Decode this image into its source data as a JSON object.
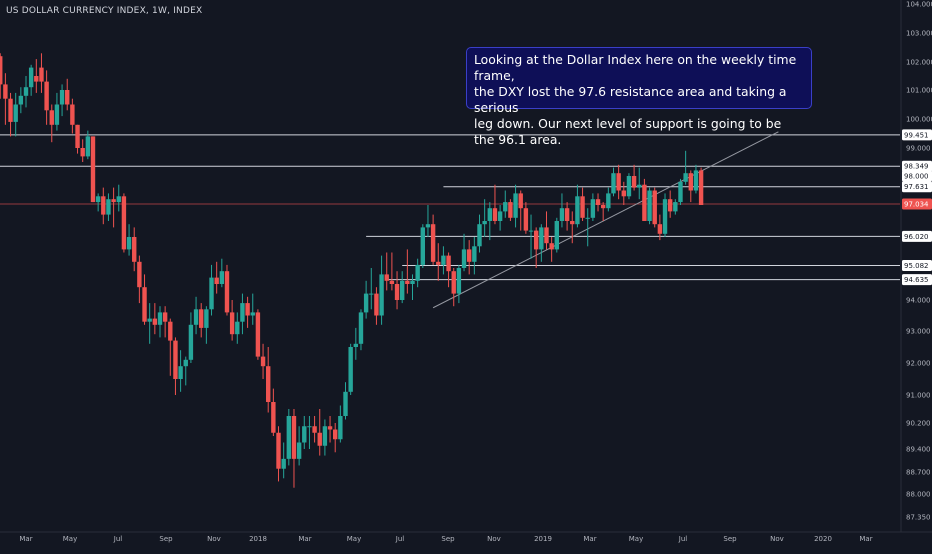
{
  "title": "US DOLLAR CURRENCY INDEX, 1W, INDEX",
  "annotation": "Looking at the Dollar Index here on the weekly time frame,\nthe DXY lost the 97.6 resistance area and taking a serious\nleg down. Our next level of support is going to be the 96.1 area.",
  "colors": {
    "background": "#131722",
    "up": "#26a69a",
    "down": "#ef5350",
    "level_line": "#d1d4dc",
    "price_line": "#ef5350",
    "axis_text": "#b2b5be",
    "note_bg": "#0e0f57"
  },
  "chart_data": {
    "type": "candlestick",
    "timeframe": "1W",
    "symbol": "INDEX",
    "y_axis": {
      "position": "right",
      "range": [
        87.0,
        104.0
      ],
      "ticks": [
        "104.000",
        "103.000",
        "102.000",
        "101.000",
        "100.000",
        "99.000",
        "98.000",
        "97.000",
        "96.000",
        "95.000",
        "94.000",
        "93.000",
        "92.000",
        "91.000",
        "90.200",
        "89.400",
        "88.700",
        "88.000",
        "87.350"
      ],
      "tick_values": [
        104.0,
        103.0,
        102.0,
        101.0,
        100.0,
        99.0,
        98.0,
        97.0,
        96.0,
        95.0,
        94.0,
        93.0,
        92.0,
        91.0,
        90.2,
        89.4,
        88.7,
        88.0,
        87.35
      ]
    },
    "x_axis": {
      "ticks": [
        "Mar",
        "May",
        "Jul",
        "Sep",
        "Nov",
        "2018",
        "Mar",
        "May",
        "Jul",
        "Sep",
        "Nov",
        "2019",
        "Mar",
        "May",
        "Jul",
        "Sep",
        "Nov",
        "2020",
        "Mar"
      ],
      "start": "2017-02-13",
      "end": "2020-03-30"
    },
    "levels": [
      {
        "label": "99.451",
        "value": 99.451,
        "from": "2016-12-26",
        "to": "2020-03-30"
      },
      {
        "label": "98.349",
        "value": 98.349,
        "from": "2016-12-26",
        "to": "2020-03-30"
      },
      {
        "label": "97.631",
        "value": 97.631,
        "from": "2018-09-03",
        "to": "2020-03-30"
      },
      {
        "label": "96.020",
        "value": 96.02,
        "from": "2018-05-21",
        "to": "2020-03-30"
      },
      {
        "label": "95.082",
        "value": 95.082,
        "from": "2018-07-09",
        "to": "2020-03-30"
      },
      {
        "label": "94.635",
        "value": 94.635,
        "from": "2018-06-18",
        "to": "2020-03-30"
      }
    ],
    "current_price": {
      "label": "97.034",
      "value": 97.034
    },
    "price_tags": [
      {
        "label": "98.000",
        "value": 98.0
      }
    ],
    "trendline": {
      "from": {
        "x": "2018-08-20",
        "y": 93.75
      },
      "to": {
        "x": "2019-12-02",
        "y": 99.56
      }
    },
    "candles": [
      {
        "x": "2017-01-02",
        "o": 101.5,
        "h": 103.0,
        "l": 100.8,
        "c": 102.2
      },
      {
        "x": "2017-01-09",
        "o": 102.2,
        "h": 102.3,
        "l": 100.7,
        "c": 101.2
      },
      {
        "x": "2017-01-16",
        "o": 101.2,
        "h": 101.6,
        "l": 99.8,
        "c": 100.7
      },
      {
        "x": "2017-01-23",
        "o": 100.7,
        "h": 100.9,
        "l": 99.4,
        "c": 99.9
      },
      {
        "x": "2017-01-30",
        "o": 99.9,
        "h": 100.9,
        "l": 99.4,
        "c": 100.5
      },
      {
        "x": "2017-02-06",
        "o": 100.5,
        "h": 101.1,
        "l": 100.2,
        "c": 100.8
      },
      {
        "x": "2017-02-13",
        "o": 100.8,
        "h": 101.5,
        "l": 100.4,
        "c": 101.1
      },
      {
        "x": "2017-02-20",
        "o": 101.1,
        "h": 101.9,
        "l": 100.8,
        "c": 101.8
      },
      {
        "x": "2017-02-27",
        "o": 101.5,
        "h": 102.1,
        "l": 100.9,
        "c": 101.3
      },
      {
        "x": "2017-03-06",
        "o": 101.8,
        "h": 102.3,
        "l": 100.9,
        "c": 101.3
      },
      {
        "x": "2017-03-13",
        "o": 101.3,
        "h": 101.7,
        "l": 99.8,
        "c": 100.3
      },
      {
        "x": "2017-03-20",
        "o": 100.3,
        "h": 100.5,
        "l": 99.2,
        "c": 99.8
      },
      {
        "x": "2017-03-27",
        "o": 99.8,
        "h": 100.9,
        "l": 99.6,
        "c": 100.5
      },
      {
        "x": "2017-04-03",
        "o": 100.5,
        "h": 101.2,
        "l": 100.1,
        "c": 101.0
      },
      {
        "x": "2017-04-10",
        "o": 101.0,
        "h": 101.4,
        "l": 100.3,
        "c": 100.5
      },
      {
        "x": "2017-04-17",
        "o": 100.5,
        "h": 100.7,
        "l": 99.5,
        "c": 99.8
      },
      {
        "x": "2017-04-24",
        "o": 99.8,
        "h": 99.8,
        "l": 98.8,
        "c": 99.0
      },
      {
        "x": "2017-05-01",
        "o": 99.0,
        "h": 99.3,
        "l": 98.5,
        "c": 98.7
      },
      {
        "x": "2017-05-08",
        "o": 98.7,
        "h": 99.6,
        "l": 98.6,
        "c": 99.4
      },
      {
        "x": "2017-05-15",
        "o": 99.4,
        "h": 99.4,
        "l": 97.1,
        "c": 97.1
      },
      {
        "x": "2017-05-22",
        "o": 97.1,
        "h": 97.4,
        "l": 96.8,
        "c": 97.3
      },
      {
        "x": "2017-05-29",
        "o": 97.3,
        "h": 97.6,
        "l": 96.4,
        "c": 96.7
      },
      {
        "x": "2017-06-05",
        "o": 96.7,
        "h": 97.4,
        "l": 96.5,
        "c": 97.2
      },
      {
        "x": "2017-06-12",
        "o": 97.2,
        "h": 97.6,
        "l": 96.3,
        "c": 97.1
      },
      {
        "x": "2017-06-19",
        "o": 97.1,
        "h": 97.7,
        "l": 96.8,
        "c": 97.3
      },
      {
        "x": "2017-06-26",
        "o": 97.3,
        "h": 97.4,
        "l": 95.5,
        "c": 95.6
      },
      {
        "x": "2017-07-03",
        "o": 95.6,
        "h": 96.4,
        "l": 95.4,
        "c": 96.0
      },
      {
        "x": "2017-07-10",
        "o": 96.0,
        "h": 96.3,
        "l": 94.9,
        "c": 95.2
      },
      {
        "x": "2017-07-17",
        "o": 95.2,
        "h": 95.4,
        "l": 93.9,
        "c": 94.4
      },
      {
        "x": "2017-07-24",
        "o": 94.4,
        "h": 94.8,
        "l": 93.2,
        "c": 93.3
      },
      {
        "x": "2017-07-31",
        "o": 93.3,
        "h": 93.9,
        "l": 92.6,
        "c": 93.4
      },
      {
        "x": "2017-08-07",
        "o": 93.4,
        "h": 93.9,
        "l": 92.9,
        "c": 93.2
      },
      {
        "x": "2017-08-14",
        "o": 93.2,
        "h": 93.8,
        "l": 92.8,
        "c": 93.6
      },
      {
        "x": "2017-08-21",
        "o": 93.6,
        "h": 93.8,
        "l": 92.8,
        "c": 93.3
      },
      {
        "x": "2017-08-28",
        "o": 93.3,
        "h": 93.4,
        "l": 91.6,
        "c": 92.7
      },
      {
        "x": "2017-09-04",
        "o": 92.7,
        "h": 92.8,
        "l": 91.0,
        "c": 91.5
      },
      {
        "x": "2017-09-11",
        "o": 91.5,
        "h": 92.4,
        "l": 91.1,
        "c": 91.9
      },
      {
        "x": "2017-09-18",
        "o": 91.9,
        "h": 92.2,
        "l": 91.3,
        "c": 92.1
      },
      {
        "x": "2017-09-25",
        "o": 92.1,
        "h": 93.6,
        "l": 92.0,
        "c": 93.2
      },
      {
        "x": "2017-10-02",
        "o": 93.2,
        "h": 94.1,
        "l": 92.9,
        "c": 93.7
      },
      {
        "x": "2017-10-09",
        "o": 93.7,
        "h": 93.9,
        "l": 92.8,
        "c": 93.1
      },
      {
        "x": "2017-10-16",
        "o": 93.1,
        "h": 93.8,
        "l": 92.6,
        "c": 93.7
      },
      {
        "x": "2017-10-23",
        "o": 93.7,
        "h": 95.1,
        "l": 93.5,
        "c": 94.7
      },
      {
        "x": "2017-10-30",
        "o": 94.7,
        "h": 95.2,
        "l": 94.2,
        "c": 94.5
      },
      {
        "x": "2017-11-06",
        "o": 94.5,
        "h": 95.3,
        "l": 94.4,
        "c": 94.9
      },
      {
        "x": "2017-11-13",
        "o": 94.9,
        "h": 95.1,
        "l": 93.5,
        "c": 93.6
      },
      {
        "x": "2017-11-20",
        "o": 93.6,
        "h": 94.0,
        "l": 92.7,
        "c": 92.9
      },
      {
        "x": "2017-11-27",
        "o": 92.9,
        "h": 93.6,
        "l": 92.6,
        "c": 93.3
      },
      {
        "x": "2017-12-04",
        "o": 93.3,
        "h": 94.2,
        "l": 92.9,
        "c": 93.9
      },
      {
        "x": "2017-12-11",
        "o": 93.9,
        "h": 94.1,
        "l": 93.1,
        "c": 93.5
      },
      {
        "x": "2017-12-18",
        "o": 93.5,
        "h": 94.2,
        "l": 93.2,
        "c": 93.6
      },
      {
        "x": "2017-12-25",
        "o": 93.6,
        "h": 93.7,
        "l": 92.1,
        "c": 92.2
      },
      {
        "x": "2018-01-01",
        "o": 92.2,
        "h": 92.6,
        "l": 91.5,
        "c": 91.9
      },
      {
        "x": "2018-01-08",
        "o": 91.9,
        "h": 92.5,
        "l": 90.5,
        "c": 90.8
      },
      {
        "x": "2018-01-15",
        "o": 90.8,
        "h": 91.2,
        "l": 89.8,
        "c": 89.9
      },
      {
        "x": "2018-01-22",
        "o": 89.9,
        "h": 90.1,
        "l": 88.4,
        "c": 88.8
      },
      {
        "x": "2018-01-29",
        "o": 88.8,
        "h": 89.6,
        "l": 88.5,
        "c": 89.1
      },
      {
        "x": "2018-02-05",
        "o": 89.1,
        "h": 90.6,
        "l": 88.9,
        "c": 90.4
      },
      {
        "x": "2018-02-12",
        "o": 90.4,
        "h": 90.6,
        "l": 88.2,
        "c": 89.1
      },
      {
        "x": "2018-02-19",
        "o": 89.1,
        "h": 90.1,
        "l": 88.9,
        "c": 89.6
      },
      {
        "x": "2018-02-26",
        "o": 89.6,
        "h": 90.4,
        "l": 89.4,
        "c": 90.1
      },
      {
        "x": "2018-03-05",
        "o": 90.1,
        "h": 90.4,
        "l": 89.4,
        "c": 90.1
      },
      {
        "x": "2018-03-12",
        "o": 90.1,
        "h": 90.4,
        "l": 89.6,
        "c": 89.9
      },
      {
        "x": "2018-03-19",
        "o": 89.9,
        "h": 90.6,
        "l": 89.2,
        "c": 89.5
      },
      {
        "x": "2018-03-26",
        "o": 89.5,
        "h": 90.3,
        "l": 89.2,
        "c": 90.1
      },
      {
        "x": "2018-04-02",
        "o": 90.1,
        "h": 90.4,
        "l": 89.6,
        "c": 90.0
      },
      {
        "x": "2018-04-09",
        "o": 90.0,
        "h": 90.2,
        "l": 89.3,
        "c": 89.7
      },
      {
        "x": "2018-04-16",
        "o": 89.7,
        "h": 90.7,
        "l": 89.6,
        "c": 90.4
      },
      {
        "x": "2018-04-23",
        "o": 90.4,
        "h": 91.4,
        "l": 90.3,
        "c": 91.1
      },
      {
        "x": "2018-04-30",
        "o": 91.1,
        "h": 92.6,
        "l": 91.0,
        "c": 92.5
      },
      {
        "x": "2018-05-07",
        "o": 92.5,
        "h": 93.1,
        "l": 92.1,
        "c": 92.6
      },
      {
        "x": "2018-05-14",
        "o": 92.6,
        "h": 93.7,
        "l": 92.4,
        "c": 93.6
      },
      {
        "x": "2018-05-21",
        "o": 93.6,
        "h": 94.6,
        "l": 93.4,
        "c": 94.2
      },
      {
        "x": "2018-05-28",
        "o": 94.2,
        "h": 95.0,
        "l": 93.7,
        "c": 94.2
      },
      {
        "x": "2018-06-04",
        "o": 94.2,
        "h": 94.4,
        "l": 93.2,
        "c": 93.5
      },
      {
        "x": "2018-06-11",
        "o": 93.5,
        "h": 95.4,
        "l": 93.2,
        "c": 94.8
      },
      {
        "x": "2018-06-18",
        "o": 94.8,
        "h": 95.5,
        "l": 94.3,
        "c": 94.6
      },
      {
        "x": "2018-06-25",
        "o": 94.6,
        "h": 95.5,
        "l": 94.3,
        "c": 94.5
      },
      {
        "x": "2018-07-02",
        "o": 94.5,
        "h": 94.9,
        "l": 93.7,
        "c": 94.0
      },
      {
        "x": "2018-07-09",
        "o": 94.0,
        "h": 94.9,
        "l": 93.9,
        "c": 94.6
      },
      {
        "x": "2018-07-16",
        "o": 94.6,
        "h": 95.6,
        "l": 94.2,
        "c": 94.5
      },
      {
        "x": "2018-07-23",
        "o": 94.5,
        "h": 94.8,
        "l": 94.0,
        "c": 94.6
      },
      {
        "x": "2018-07-30",
        "o": 94.6,
        "h": 95.3,
        "l": 94.4,
        "c": 95.1
      },
      {
        "x": "2018-08-06",
        "o": 95.1,
        "h": 96.4,
        "l": 95.0,
        "c": 96.3
      },
      {
        "x": "2018-08-13",
        "o": 96.3,
        "h": 97.0,
        "l": 96.0,
        "c": 96.4
      },
      {
        "x": "2018-08-20",
        "o": 96.4,
        "h": 96.7,
        "l": 95.1,
        "c": 95.2
      },
      {
        "x": "2018-08-27",
        "o": 95.2,
        "h": 95.8,
        "l": 94.6,
        "c": 95.1
      },
      {
        "x": "2018-09-03",
        "o": 95.1,
        "h": 95.7,
        "l": 94.8,
        "c": 95.4
      },
      {
        "x": "2018-09-10",
        "o": 95.4,
        "h": 95.5,
        "l": 94.4,
        "c": 94.9
      },
      {
        "x": "2018-09-17",
        "o": 94.9,
        "h": 95.0,
        "l": 93.8,
        "c": 94.2
      },
      {
        "x": "2018-09-24",
        "o": 94.2,
        "h": 95.1,
        "l": 93.9,
        "c": 95.0
      },
      {
        "x": "2018-10-01",
        "o": 95.0,
        "h": 96.1,
        "l": 94.9,
        "c": 95.6
      },
      {
        "x": "2018-10-08",
        "o": 95.6,
        "h": 95.9,
        "l": 94.8,
        "c": 95.2
      },
      {
        "x": "2018-10-15",
        "o": 95.2,
        "h": 96.0,
        "l": 94.8,
        "c": 95.7
      },
      {
        "x": "2018-10-22",
        "o": 95.7,
        "h": 96.7,
        "l": 95.5,
        "c": 96.4
      },
      {
        "x": "2018-10-29",
        "o": 96.4,
        "h": 97.2,
        "l": 96.0,
        "c": 96.5
      },
      {
        "x": "2018-11-05",
        "o": 96.5,
        "h": 97.1,
        "l": 95.9,
        "c": 96.9
      },
      {
        "x": "2018-11-12",
        "o": 96.9,
        "h": 97.7,
        "l": 96.4,
        "c": 96.5
      },
      {
        "x": "2018-11-19",
        "o": 96.5,
        "h": 97.0,
        "l": 96.2,
        "c": 96.8
      },
      {
        "x": "2018-11-26",
        "o": 96.8,
        "h": 97.5,
        "l": 96.6,
        "c": 97.1
      },
      {
        "x": "2018-12-03",
        "o": 97.1,
        "h": 97.2,
        "l": 96.5,
        "c": 96.6
      },
      {
        "x": "2018-12-10",
        "o": 96.6,
        "h": 97.7,
        "l": 96.3,
        "c": 97.4
      },
      {
        "x": "2018-12-17",
        "o": 97.4,
        "h": 97.5,
        "l": 96.2,
        "c": 96.9
      },
      {
        "x": "2018-12-24",
        "o": 96.9,
        "h": 97.1,
        "l": 96.1,
        "c": 96.2
      },
      {
        "x": "2018-12-31",
        "o": 96.2,
        "h": 96.7,
        "l": 95.3,
        "c": 96.2
      },
      {
        "x": "2019-01-07",
        "o": 96.2,
        "h": 96.3,
        "l": 95.0,
        "c": 95.6
      },
      {
        "x": "2019-01-14",
        "o": 95.6,
        "h": 96.4,
        "l": 95.2,
        "c": 96.3
      },
      {
        "x": "2019-01-21",
        "o": 96.3,
        "h": 96.8,
        "l": 95.6,
        "c": 95.8
      },
      {
        "x": "2019-01-28",
        "o": 95.8,
        "h": 96.0,
        "l": 95.2,
        "c": 95.6
      },
      {
        "x": "2019-02-04",
        "o": 95.6,
        "h": 96.6,
        "l": 95.5,
        "c": 96.5
      },
      {
        "x": "2019-02-11",
        "o": 96.5,
        "h": 97.4,
        "l": 96.3,
        "c": 96.9
      },
      {
        "x": "2019-02-18",
        "o": 96.9,
        "h": 97.1,
        "l": 96.2,
        "c": 96.5
      },
      {
        "x": "2019-02-25",
        "o": 96.5,
        "h": 96.8,
        "l": 95.8,
        "c": 96.4
      },
      {
        "x": "2019-03-04",
        "o": 96.4,
        "h": 97.7,
        "l": 96.3,
        "c": 97.3
      },
      {
        "x": "2019-03-11",
        "o": 97.3,
        "h": 97.6,
        "l": 96.5,
        "c": 96.6
      },
      {
        "x": "2019-03-18",
        "o": 96.6,
        "h": 96.9,
        "l": 95.7,
        "c": 96.6
      },
      {
        "x": "2019-03-25",
        "o": 96.6,
        "h": 97.4,
        "l": 96.5,
        "c": 97.2
      },
      {
        "x": "2019-04-01",
        "o": 97.2,
        "h": 97.4,
        "l": 96.8,
        "c": 97.0
      },
      {
        "x": "2019-04-08",
        "o": 97.0,
        "h": 97.1,
        "l": 96.5,
        "c": 96.9
      },
      {
        "x": "2019-04-15",
        "o": 96.9,
        "h": 97.6,
        "l": 96.8,
        "c": 97.4
      },
      {
        "x": "2019-04-22",
        "o": 97.4,
        "h": 98.3,
        "l": 97.3,
        "c": 98.1
      },
      {
        "x": "2019-04-29",
        "o": 98.1,
        "h": 98.4,
        "l": 97.2,
        "c": 97.5
      },
      {
        "x": "2019-05-06",
        "o": 97.5,
        "h": 97.8,
        "l": 97.0,
        "c": 97.3
      },
      {
        "x": "2019-05-13",
        "o": 97.3,
        "h": 98.1,
        "l": 97.2,
        "c": 98.0
      },
      {
        "x": "2019-05-20",
        "o": 98.0,
        "h": 98.4,
        "l": 97.5,
        "c": 97.6
      },
      {
        "x": "2019-05-27",
        "o": 97.6,
        "h": 98.3,
        "l": 97.2,
        "c": 97.7
      },
      {
        "x": "2019-06-03",
        "o": 97.7,
        "h": 97.9,
        "l": 96.5,
        "c": 96.5
      },
      {
        "x": "2019-06-10",
        "o": 96.5,
        "h": 97.6,
        "l": 96.4,
        "c": 97.5
      },
      {
        "x": "2019-06-17",
        "o": 97.5,
        "h": 97.6,
        "l": 96.3,
        "c": 96.4
      },
      {
        "x": "2019-06-24",
        "o": 96.4,
        "h": 96.7,
        "l": 95.9,
        "c": 96.1
      },
      {
        "x": "2019-07-01",
        "o": 96.1,
        "h": 97.4,
        "l": 96.0,
        "c": 97.2
      },
      {
        "x": "2019-07-08",
        "o": 97.2,
        "h": 97.5,
        "l": 96.6,
        "c": 96.8
      },
      {
        "x": "2019-07-15",
        "o": 96.8,
        "h": 97.2,
        "l": 96.7,
        "c": 97.1
      },
      {
        "x": "2019-07-22",
        "o": 97.1,
        "h": 97.9,
        "l": 97.0,
        "c": 97.8
      },
      {
        "x": "2019-07-29",
        "o": 97.8,
        "h": 98.9,
        "l": 97.7,
        "c": 98.1
      },
      {
        "x": "2019-08-05",
        "o": 98.1,
        "h": 98.2,
        "l": 97.1,
        "c": 97.5
      },
      {
        "x": "2019-08-12",
        "o": 97.5,
        "h": 98.4,
        "l": 97.4,
        "c": 98.2
      },
      {
        "x": "2019-08-19",
        "o": 98.2,
        "h": 98.3,
        "l": 97.0,
        "c": 97.0
      }
    ]
  }
}
